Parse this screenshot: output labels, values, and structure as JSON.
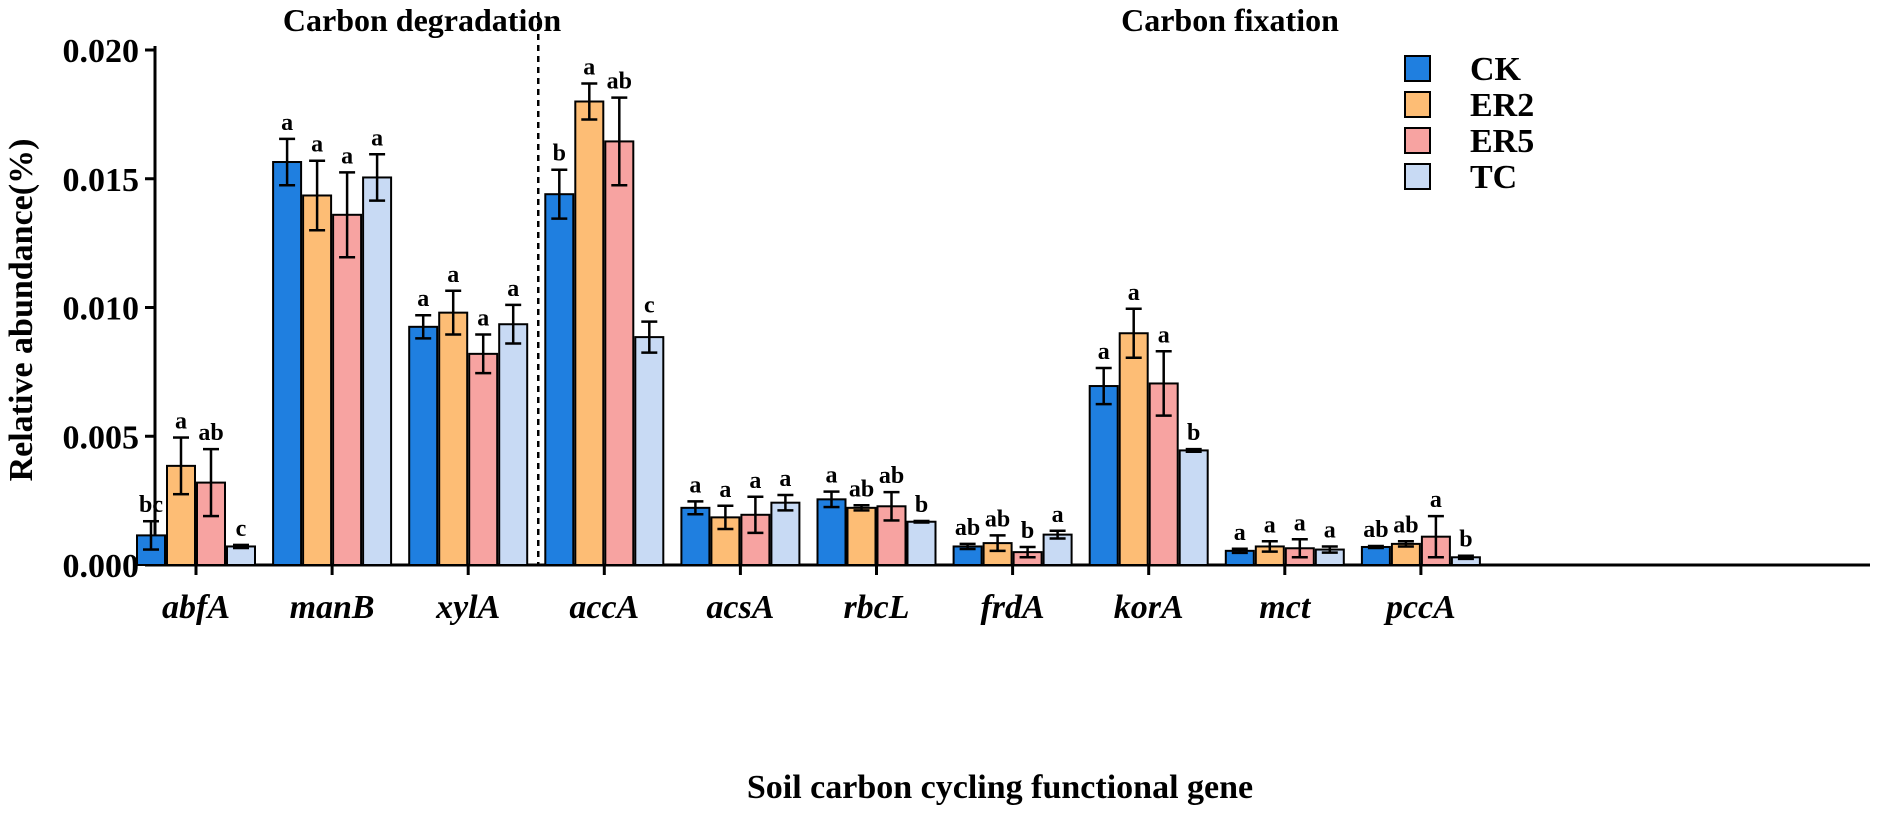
{
  "chart_data": {
    "type": "bar",
    "title": "",
    "xlabel": "Soil carbon cycling functional gene",
    "ylabel": "Relative abundance(%)",
    "ylim": [
      0,
      0.02
    ],
    "yticks": [
      "0.000",
      "0.005",
      "0.010",
      "0.015",
      "0.020"
    ],
    "ytick_values": [
      0,
      0.005,
      0.01,
      0.015,
      0.02
    ],
    "grid": false,
    "legend_position": "top-right",
    "sections": [
      {
        "label": "Carbon degradation",
        "categories": [
          "abfA",
          "manB",
          "xylA"
        ]
      },
      {
        "label": "Carbon fixation",
        "categories": [
          "accA",
          "acsA",
          "rbcL",
          "frdA",
          "korA",
          "mct",
          "pccA"
        ]
      }
    ],
    "categories": [
      "abfA",
      "manB",
      "xylA",
      "accA",
      "acsA",
      "rbcL",
      "frdA",
      "korA",
      "mct",
      "pccA"
    ],
    "series": [
      {
        "name": "CK",
        "color": "#1f7fe0",
        "values": [
          0.00115,
          0.01565,
          0.00925,
          0.0144,
          0.00222,
          0.00255,
          0.00072,
          0.00695,
          0.00055,
          0.0007
        ],
        "errors": [
          0.00055,
          0.0009,
          0.00045,
          0.00095,
          0.00025,
          0.0003,
          0.0001,
          0.0007,
          8e-05,
          4e-05
        ],
        "significance": [
          "bc",
          "a",
          "a",
          "b",
          "a",
          "a",
          "ab",
          "a",
          "a",
          "ab"
        ]
      },
      {
        "name": "ER2",
        "color": "#fdbd75",
        "values": [
          0.00385,
          0.01435,
          0.0098,
          0.018,
          0.00185,
          0.00222,
          0.00085,
          0.009,
          0.00072,
          0.00082
        ],
        "errors": [
          0.0011,
          0.00135,
          0.00085,
          0.0007,
          0.00045,
          0.0001,
          0.0003,
          0.00095,
          0.0002,
          0.0001
        ],
        "significance": [
          "a",
          "a",
          "a",
          "a",
          "a",
          "ab",
          "ab",
          "a",
          "a",
          "ab"
        ]
      },
      {
        "name": "ER5",
        "color": "#f7a3a1",
        "values": [
          0.0032,
          0.0136,
          0.0082,
          0.01645,
          0.00195,
          0.00228,
          0.0005,
          0.00705,
          0.00065,
          0.0011
        ],
        "errors": [
          0.0013,
          0.00165,
          0.00075,
          0.0017,
          0.0007,
          0.00055,
          0.0002,
          0.00125,
          0.00035,
          0.0008
        ],
        "significance": [
          "ab",
          "a",
          "a",
          "ab",
          "a",
          "ab",
          "b",
          "a",
          "a",
          "a"
        ]
      },
      {
        "name": "TC",
        "color": "#c8daf4",
        "values": [
          0.00072,
          0.01505,
          0.00935,
          0.00885,
          0.00242,
          0.00168,
          0.00118,
          0.00445,
          0.0006,
          0.0003
        ],
        "errors": [
          6e-05,
          0.0009,
          0.00075,
          0.0006,
          0.0003,
          3e-05,
          0.00015,
          5e-05,
          0.00012,
          6e-05
        ],
        "significance": [
          "c",
          "a",
          "a",
          "c",
          "a",
          "b",
          "a",
          "b",
          "a",
          "b"
        ]
      }
    ]
  }
}
